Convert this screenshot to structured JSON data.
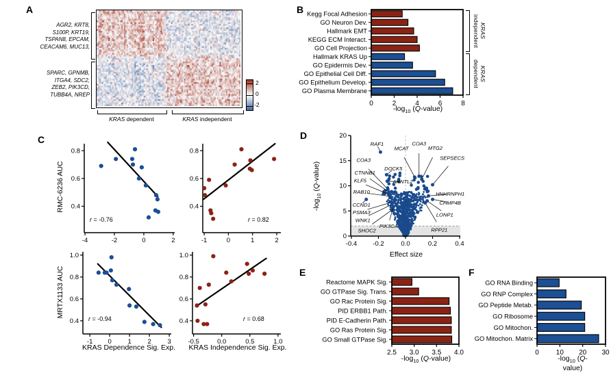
{
  "panels": {
    "a": "A",
    "b": "B",
    "c": "C",
    "d": "D",
    "e": "E",
    "f": "F"
  },
  "labels": {
    "qvalue": {
      "neglog": "-log",
      "sub10": "10",
      "open": " (",
      "q": "Q",
      "close": "-value)"
    }
  },
  "r_values": {
    "c1": {
      "r": "r",
      "rest": " = -0.76"
    },
    "c2": {
      "r": "r",
      "rest": " = 0.82"
    },
    "c3": {
      "r": "r",
      "rest": " = -0.94"
    },
    "c4": {
      "r": "r",
      "rest": " = 0.68"
    }
  },
  "chart_data": [
    {
      "id": "A",
      "type": "heatmap",
      "row_groups": [
        {
          "genes": "AGR2, KRT8,\nS100P, KRT19,\nTSPAN8, EPCAM,\nCEACAM6, MUC13,"
        },
        {
          "genes": "SPARC, GPNMB,\nITGA4, SDC2,\nZEB2, PIK3CD,\nTUBB4A, NREP"
        }
      ],
      "col_groups": [
        {
          "label_italic": "KRAS",
          "label_rest": " dependent"
        },
        {
          "label_italic": "KRAS",
          "label_rest": " independent"
        }
      ],
      "colorbar_ticks": [
        "2",
        "0",
        "-2"
      ],
      "zlim": [
        -2,
        2
      ],
      "colors": {
        "pos": "#9e3120",
        "neg": "#44679e",
        "bg": "#ffffff"
      },
      "grid": {
        "rows": 56,
        "cols": 110,
        "row_split": 0.47,
        "col_split": 0.48,
        "block_means": [
          [
            0.55,
            -0.22
          ],
          [
            -0.32,
            0.45
          ]
        ],
        "noise_sd": 0.8,
        "seed": 7
      }
    },
    {
      "id": "B",
      "type": "bar",
      "categories": [
        "Kegg Focal Adhesion",
        "GO Neuron Dev.",
        "Hallmark EMT",
        "KEGG ECM Interact.",
        "GO Cell Projection",
        "Hallmark KRAS Up",
        "GO Epidermis Dev.",
        "GO Epithelial Cell Diff.",
        "GO Epithelium Develop.",
        "GO Plasma Membrane"
      ],
      "values": [
        2.7,
        3.2,
        3.7,
        4.0,
        4.2,
        2.9,
        3.6,
        5.6,
        6.4,
        7.1
      ],
      "colors": [
        "#8b2315",
        "#8b2315",
        "#8b2315",
        "#8b2315",
        "#8b2315",
        "#1c4f93",
        "#1c4f93",
        "#1c4f93",
        "#1c4f93",
        "#1c4f93"
      ],
      "xlim": [
        0,
        8
      ],
      "xticks": [
        0,
        2,
        4,
        6,
        8
      ],
      "xtick_labels": [
        "0",
        "2",
        "4",
        "6",
        "8"
      ],
      "xlabel": "-log10 (Q-value)",
      "group_brackets": [
        {
          "label_italic": "KRAS",
          "label_rest": "independent"
        },
        {
          "label_italic": "KRAS",
          "label_rest": "dependent"
        }
      ]
    },
    {
      "id": "C1",
      "type": "scatter",
      "ylabel": "RMC-6236 AUC",
      "r": "-0.76",
      "color": "#1c4f93",
      "xlim": [
        -4.05,
        2.1
      ],
      "ylim": [
        0.21,
        0.85
      ],
      "xticks": [
        -4,
        -2,
        0,
        2
      ],
      "xtick_labels": [
        "-4",
        "-2",
        "0",
        "2"
      ],
      "yticks": [
        0.4,
        0.6,
        0.8
      ],
      "ytick_labels": [
        "0.4",
        "0.6",
        "0.8"
      ],
      "points": [
        [
          -2.9,
          0.69
        ],
        [
          -1.9,
          0.74
        ],
        [
          -0.79,
          0.74
        ],
        [
          -0.74,
          0.7
        ],
        [
          -0.6,
          0.81
        ],
        [
          -0.33,
          0.6
        ],
        [
          -0.14,
          0.68
        ],
        [
          0.14,
          0.55
        ],
        [
          0.33,
          0.32
        ],
        [
          0.79,
          0.37
        ],
        [
          0.84,
          0.48
        ],
        [
          0.93,
          0.45
        ],
        [
          0.98,
          0.36
        ]
      ],
      "trend": [
        [
          -2.45,
          0.86
        ],
        [
          0.95,
          0.47
        ]
      ]
    },
    {
      "id": "C2",
      "type": "scatter",
      "r": "0.82",
      "color": "#8b2315",
      "xlim": [
        -1.06,
        2.17
      ],
      "ylim": [
        0.21,
        0.85
      ],
      "xticks": [
        -1,
        0,
        1,
        2
      ],
      "xtick_labels": [
        "-1",
        "0",
        "1",
        "2"
      ],
      "yticks": [
        0.4,
        0.6,
        0.8
      ],
      "ytick_labels": [
        "0.4",
        "0.6",
        "0.8"
      ],
      "points": [
        [
          -1.0,
          0.53
        ],
        [
          -0.97,
          0.48
        ],
        [
          -0.8,
          0.59
        ],
        [
          -0.74,
          0.37
        ],
        [
          -0.71,
          0.35
        ],
        [
          -0.63,
          0.31
        ],
        [
          -0.11,
          0.55
        ],
        [
          0.26,
          0.7
        ],
        [
          0.54,
          0.81
        ],
        [
          0.89,
          0.67
        ],
        [
          0.91,
          0.73
        ],
        [
          0.97,
          0.66
        ],
        [
          1.89,
          0.74
        ]
      ],
      "trend": [
        [
          -1.03,
          0.45
        ],
        [
          1.93,
          0.85
        ]
      ]
    },
    {
      "id": "C3",
      "type": "scatter",
      "ylabel": "MRTX1133 AUC",
      "xlabel": "KRAS Dependence Sig. Exp.",
      "r": "-0.94",
      "color": "#1c4f93",
      "xlim": [
        -1.35,
        3.1
      ],
      "ylim": [
        0.28,
        1.03
      ],
      "xticks": [
        -1,
        0,
        1,
        2,
        3
      ],
      "xtick_labels": [
        "-1",
        "0",
        "1",
        "2",
        "3"
      ],
      "yticks": [
        0.4,
        0.6,
        0.8,
        1.0
      ],
      "ytick_labels": [
        "0.4",
        "0.6",
        "0.8",
        "1.0"
      ],
      "points": [
        [
          -0.56,
          0.84
        ],
        [
          -0.25,
          0.84
        ],
        [
          -0.16,
          0.84
        ],
        [
          0.06,
          0.86
        ],
        [
          0.09,
          0.98
        ],
        [
          0.13,
          0.77
        ],
        [
          0.34,
          0.73
        ],
        [
          0.97,
          0.69
        ],
        [
          1.0,
          0.54
        ],
        [
          1.34,
          0.53
        ],
        [
          1.75,
          0.39
        ],
        [
          2.19,
          0.37
        ],
        [
          2.53,
          0.36
        ]
      ],
      "trend": [
        [
          -0.6,
          0.92
        ],
        [
          2.6,
          0.34
        ]
      ]
    },
    {
      "id": "C4",
      "type": "scatter",
      "xlabel": "KRAS Independence Sig. Exp.",
      "r": "0.68",
      "color": "#8b2315",
      "xlim": [
        -0.52,
        1.05
      ],
      "ylim": [
        0.28,
        1.03
      ],
      "xticks": [
        -0.5,
        0.0,
        0.5,
        1.0
      ],
      "xtick_labels": [
        "-0.5",
        "0.0",
        "0.5",
        "1.0"
      ],
      "yticks": [
        0.4,
        0.6,
        0.8,
        1.0
      ],
      "ytick_labels": [
        "0.4",
        "0.6",
        "0.8",
        "1.0"
      ],
      "points": [
        [
          -0.44,
          0.54
        ],
        [
          -0.43,
          0.4
        ],
        [
          -0.39,
          0.7
        ],
        [
          -0.32,
          0.37
        ],
        [
          -0.29,
          0.55
        ],
        [
          -0.26,
          0.37
        ],
        [
          -0.23,
          0.73
        ],
        [
          -0.15,
          0.99
        ],
        [
          0.08,
          0.84
        ],
        [
          0.17,
          0.76
        ],
        [
          0.45,
          0.92
        ],
        [
          0.48,
          0.83
        ],
        [
          0.55,
          0.86
        ],
        [
          0.76,
          0.83
        ]
      ],
      "trend": [
        [
          -0.46,
          0.53
        ],
        [
          0.79,
          0.97
        ]
      ]
    },
    {
      "id": "D",
      "type": "volcano",
      "xlabel": "Effect size",
      "ylabel": "-log10 (Q-value)",
      "color": "#1a4a8c",
      "xlim": [
        -0.405,
        0.405
      ],
      "ylim": [
        0,
        20
      ],
      "xticks": [
        -0.4,
        -0.2,
        0.0,
        0.2,
        0.4
      ],
      "xtick_labels": [
        "-0.4",
        "-0.2",
        "0.0",
        "0.2",
        "0.4"
      ],
      "yticks": [
        0,
        5,
        10,
        15,
        20
      ],
      "ytick_labels": [
        "0",
        "5",
        "10",
        "15",
        "20"
      ],
      "threshold_y": 2,
      "cloud": {
        "seed": 12,
        "n": 1100,
        "y_max": 8.8,
        "base_halfwidth": 0.012,
        "halfwidth_per_y": 0.0155,
        "n_upper": 36,
        "upper_y_min": 8.8,
        "upper_y_range": 3.8
      },
      "genes": [
        {
          "gene": "RAF1",
          "point": [
            -0.185,
            16.7
          ],
          "label": [
            -0.21,
            18.3
          ]
        },
        {
          "gene": "COA3",
          "point": [
            -0.13,
            9.3
          ],
          "label": [
            -0.31,
            15.1
          ]
        },
        {
          "gene": "DOCK5",
          "point": [
            -0.14,
            12.2
          ],
          "label": [
            -0.09,
            13.4
          ]
        },
        {
          "gene": "ARNTL2",
          "point": [
            -0.135,
            10.9
          ],
          "label": [
            -0.02,
            10.8
          ]
        },
        {
          "gene": "CTNNB1",
          "point": [
            -0.12,
            8.7
          ],
          "label": [
            -0.3,
            12.6
          ]
        },
        {
          "gene": "KLF5",
          "point": [
            -0.125,
            8.3
          ],
          "label": [
            -0.335,
            11.0
          ]
        },
        {
          "gene": "RAB10",
          "point": [
            -0.115,
            7.9
          ],
          "label": [
            -0.325,
            8.8
          ]
        },
        {
          "gene": "CCND1",
          "point": [
            -0.29,
            7.3
          ],
          "label": [
            -0.325,
            6.2
          ]
        },
        {
          "gene": "PSMA3",
          "point": [
            -0.105,
            6.7
          ],
          "label": [
            -0.325,
            4.7
          ]
        },
        {
          "gene": "WNK1",
          "point": [
            -0.1,
            6.3
          ],
          "label": [
            -0.315,
            3.1
          ]
        },
        {
          "gene": "SHOC2",
          "point": [
            -0.095,
            5.3
          ],
          "label": [
            -0.285,
            1.1
          ]
        },
        {
          "gene": "PIK3CA",
          "point": [
            -0.09,
            5.8
          ],
          "label": [
            -0.125,
            2.0
          ]
        },
        {
          "gene": "MCAT",
          "point": [
            0.07,
            11.6
          ],
          "label": [
            -0.03,
            17.4
          ]
        },
        {
          "gene": "COA3",
          "point": [
            0.1,
            11.9
          ],
          "label": [
            0.1,
            18.4
          ]
        },
        {
          "gene": "MTG2",
          "point": [
            0.12,
            11.3
          ],
          "label": [
            0.22,
            17.5
          ]
        },
        {
          "gene": "SEPSECS",
          "point": [
            0.2,
            10.2
          ],
          "label": [
            0.345,
            15.5
          ]
        },
        {
          "gene": "HNHRNPH1",
          "point": [
            0.17,
            8.0
          ],
          "label": [
            0.33,
            8.4
          ]
        },
        {
          "gene": "CHMP4B",
          "point": [
            0.2,
            7.3
          ],
          "label": [
            0.33,
            6.6
          ]
        },
        {
          "gene": "LONP1",
          "point": [
            0.16,
            7.0
          ],
          "label": [
            0.29,
            4.2
          ]
        },
        {
          "gene": "RPP21",
          "point": [
            0.145,
            6.6
          ],
          "label": [
            0.25,
            1.2
          ]
        }
      ]
    },
    {
      "id": "E",
      "type": "bar",
      "categories": [
        "Reactome MAPK Sig.",
        "GO GTPase Sig. Trans.",
        "GO Rac Protein Sig.",
        "PID ERBB1 Path.",
        "PID E-Cadherin Path.",
        "GO Ras Protein Sig.",
        "GO Small GTPase Sig."
      ],
      "values": [
        2.95,
        3.1,
        3.78,
        3.81,
        3.83,
        3.83,
        3.84
      ],
      "colors": [
        "#8b2315",
        "#8b2315",
        "#8b2315",
        "#8b2315",
        "#8b2315",
        "#8b2315",
        "#8b2315"
      ],
      "xlim": [
        2.5,
        4.0
      ],
      "xticks": [
        2.5,
        3.0,
        3.5,
        4.0
      ],
      "xtick_labels": [
        "2.5",
        "3.0",
        "3.5",
        "4.0"
      ],
      "xlabel": "-log10 (Q-value)"
    },
    {
      "id": "F",
      "type": "bar",
      "categories": [
        "GO RNA Binding",
        "GO RNP Complex",
        "GO Peptide Metab.",
        "GO Ribosome",
        "GO Mitochon.",
        "GO Mitochon. Matrix"
      ],
      "values": [
        9.7,
        12.7,
        19.4,
        20.9,
        20.9,
        27
      ],
      "colors": [
        "#1c4f93",
        "#1c4f93",
        "#1c4f93",
        "#1c4f93",
        "#1c4f93",
        "#1c4f93"
      ],
      "xlim": [
        0,
        30
      ],
      "xticks": [
        0,
        10,
        20,
        30
      ],
      "xtick_labels": [
        "0",
        "10",
        "20",
        "30"
      ],
      "xlabel": "-log10 (Q-value)"
    }
  ]
}
